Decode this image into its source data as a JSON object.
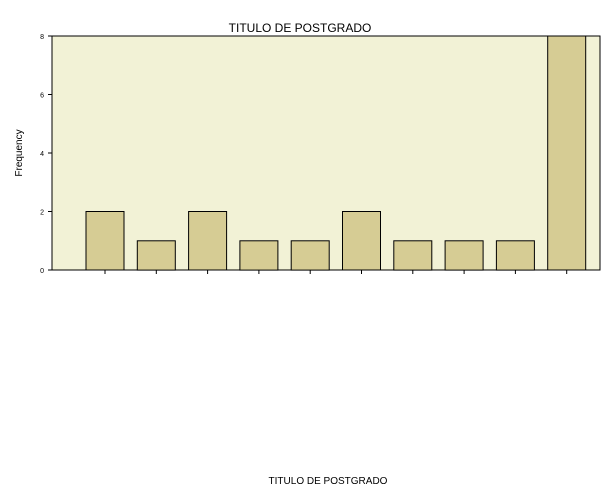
{
  "chart_data": {
    "type": "bar",
    "title": "TITULO DE POSTGRADO",
    "xlabel": "TITULO DE POSTGRADO",
    "ylabel": "Frequency",
    "ylim": [
      0,
      8
    ],
    "yticks": [
      0,
      2,
      4,
      6,
      8
    ],
    "grid": false,
    "bar_color": "#d6cc94",
    "plot_background": "#f2f2d6",
    "categories": [
      "",
      "",
      "",
      "",
      "",
      "",
      "",
      "",
      "",
      ""
    ],
    "values": [
      2,
      1,
      2,
      1,
      1,
      2,
      1,
      1,
      1,
      8
    ]
  }
}
